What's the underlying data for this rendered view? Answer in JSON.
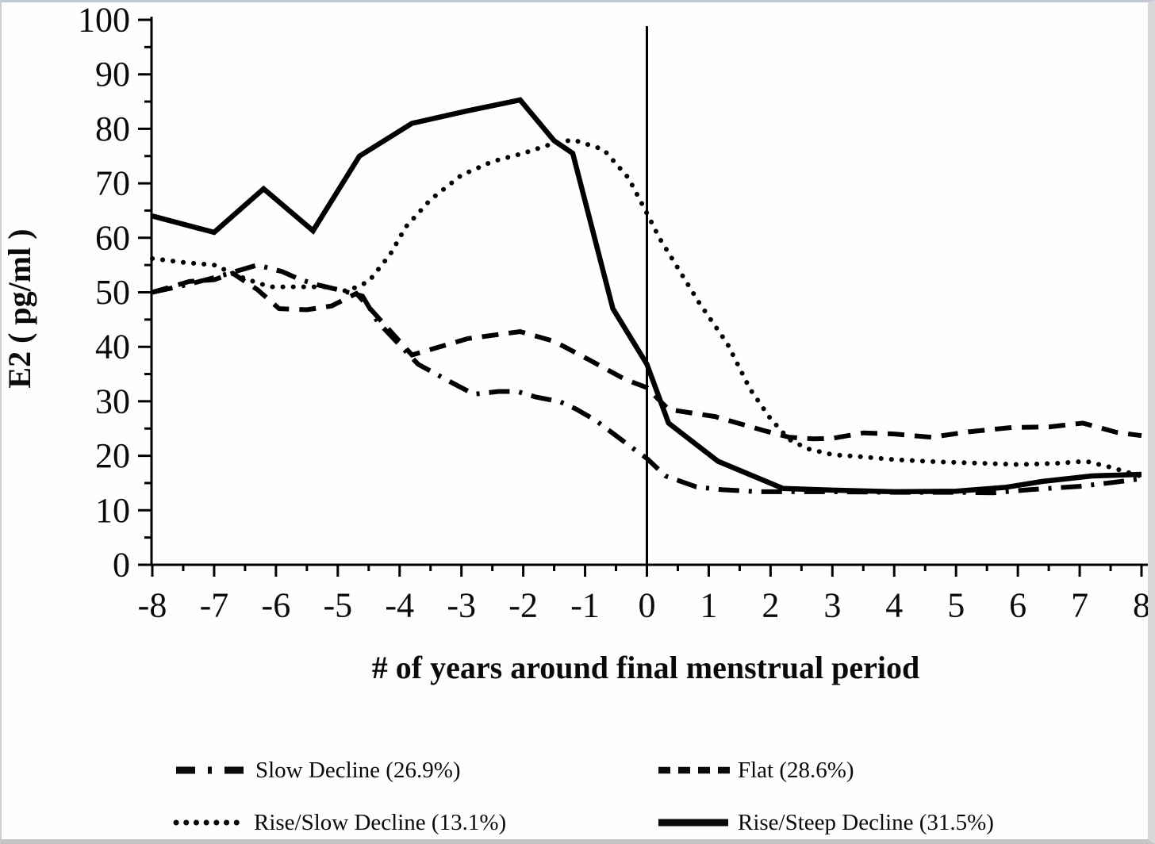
{
  "colors": {
    "line": "#000000",
    "frame": "#c4c9d2",
    "background": "#fefefe"
  },
  "chart_data": {
    "type": "line",
    "title": "",
    "xlabel": "# of years around final menstrual period",
    "ylabel": "E2 ( pg/ml )",
    "xlim": [
      -8,
      8
    ],
    "ylim": [
      0,
      100
    ],
    "x_ticks": [
      -8,
      -7,
      -6,
      -5,
      -4,
      -3,
      -2,
      -1,
      0,
      1,
      2,
      3,
      4,
      5,
      6,
      7,
      8
    ],
    "y_ticks": [
      0,
      10,
      20,
      30,
      40,
      50,
      60,
      70,
      80,
      90,
      100
    ],
    "x_minor_tick_step": 0.5,
    "y_minor_tick_step": 5,
    "grid": false,
    "reference_line_x": 0,
    "legend_position": "bottom",
    "series": [
      {
        "name": "Slow Decline (26.9%)",
        "line_style": "dash-dot",
        "color": "#000000",
        "points": [
          [
            -8,
            50
          ],
          [
            -7.4,
            51.5
          ],
          [
            -6.9,
            53
          ],
          [
            -6.3,
            55
          ],
          [
            -5.9,
            53.8
          ],
          [
            -5.6,
            52.3
          ],
          [
            -5.3,
            51.3
          ],
          [
            -5,
            50.5
          ],
          [
            -4.6,
            49.3
          ],
          [
            -4.35,
            44.5
          ],
          [
            -3.7,
            36.8
          ],
          [
            -3.2,
            33.7
          ],
          [
            -2.8,
            31.3
          ],
          [
            -2.4,
            31.8
          ],
          [
            -2.1,
            31.8
          ],
          [
            -1.8,
            30.8
          ],
          [
            -1.4,
            29.9
          ],
          [
            -1.15,
            28.6
          ],
          [
            -0.83,
            26.5
          ],
          [
            -0.3,
            22
          ],
          [
            0,
            19.5
          ],
          [
            0.3,
            16.3
          ],
          [
            0.8,
            14.3
          ],
          [
            1.2,
            13.8
          ],
          [
            1.8,
            13.4
          ],
          [
            3,
            13.4
          ],
          [
            4,
            13.3
          ],
          [
            5,
            13.3
          ],
          [
            5.6,
            13.2
          ],
          [
            6.2,
            13.8
          ],
          [
            7,
            14.4
          ],
          [
            7.6,
            15.2
          ],
          [
            8,
            15.8
          ]
        ]
      },
      {
        "name": "Flat (28.6%)",
        "line_style": "dashed",
        "color": "#000000",
        "points": [
          [
            -8,
            50
          ],
          [
            -7.4,
            52
          ],
          [
            -7,
            52.3
          ],
          [
            -6.7,
            53.5
          ],
          [
            -6.3,
            50.5
          ],
          [
            -5.95,
            47
          ],
          [
            -5.5,
            46.8
          ],
          [
            -5.1,
            47.5
          ],
          [
            -4.7,
            49.8
          ],
          [
            -3.8,
            38.5
          ],
          [
            -2.9,
            41.5
          ],
          [
            -2.05,
            42.8
          ],
          [
            -1.5,
            41
          ],
          [
            -0.95,
            37.7
          ],
          [
            -0.35,
            34
          ],
          [
            0,
            32.5
          ],
          [
            0.35,
            28.5
          ],
          [
            1.1,
            27.2
          ],
          [
            1.9,
            24.6
          ],
          [
            2.3,
            23.4
          ],
          [
            2.7,
            23.1
          ],
          [
            3,
            23.2
          ],
          [
            3.5,
            24.2
          ],
          [
            4,
            24
          ],
          [
            4.6,
            23.4
          ],
          [
            5.2,
            24.4
          ],
          [
            5.9,
            25.2
          ],
          [
            6.5,
            25.3
          ],
          [
            7.05,
            26
          ],
          [
            7.6,
            24.3
          ],
          [
            8,
            23.7
          ]
        ]
      },
      {
        "name": "Rise/Slow Decline (13.1%)",
        "line_style": "dotted",
        "color": "#000000",
        "points": [
          [
            -8,
            56.2
          ],
          [
            -7.5,
            55.5
          ],
          [
            -7,
            55
          ],
          [
            -6.5,
            52.5
          ],
          [
            -6.1,
            51
          ],
          [
            -5.6,
            51
          ],
          [
            -5.2,
            51
          ],
          [
            -4.85,
            50.2
          ],
          [
            -4.5,
            52
          ],
          [
            -4.15,
            57
          ],
          [
            -3.9,
            62
          ],
          [
            -3.5,
            67
          ],
          [
            -3,
            71.5
          ],
          [
            -2.5,
            74
          ],
          [
            -2,
            75.5
          ],
          [
            -1.6,
            77
          ],
          [
            -1.2,
            78
          ],
          [
            -0.7,
            76.2
          ],
          [
            -0.3,
            71
          ],
          [
            0,
            64.5
          ],
          [
            0.2,
            60
          ],
          [
            0.85,
            48
          ],
          [
            1.3,
            40.6
          ],
          [
            1.67,
            32.2
          ],
          [
            2,
            26.8
          ],
          [
            2.3,
            23
          ],
          [
            2.6,
            21.3
          ],
          [
            3,
            20.2
          ],
          [
            3.5,
            19.8
          ],
          [
            4,
            19.3
          ],
          [
            4.7,
            18.9
          ],
          [
            5.5,
            18.6
          ],
          [
            6,
            18.4
          ],
          [
            6.6,
            18.6
          ],
          [
            7.1,
            19
          ],
          [
            7.5,
            17.9
          ],
          [
            8,
            16.2
          ]
        ]
      },
      {
        "name": "Rise/Steep Decline (31.5%)",
        "line_style": "solid",
        "color": "#000000",
        "points": [
          [
            -8,
            64
          ],
          [
            -7,
            61
          ],
          [
            -6.2,
            69
          ],
          [
            -5.4,
            61.3
          ],
          [
            -4.65,
            75
          ],
          [
            -3.8,
            81
          ],
          [
            -2.9,
            83.3
          ],
          [
            -2.05,
            85.3
          ],
          [
            -1.5,
            77.8
          ],
          [
            -1.2,
            75.5
          ],
          [
            -0.55,
            47
          ],
          [
            0,
            36.8
          ],
          [
            0.35,
            26
          ],
          [
            1.15,
            19
          ],
          [
            2.2,
            14
          ],
          [
            3,
            13.7
          ],
          [
            4,
            13.4
          ],
          [
            5,
            13.5
          ],
          [
            5.8,
            14.2
          ],
          [
            6.4,
            15.3
          ],
          [
            7.2,
            16.3
          ],
          [
            8,
            16.6
          ]
        ]
      }
    ]
  },
  "legend": {
    "items": [
      {
        "label": "Slow Decline (26.9%)",
        "style": "dash-dot"
      },
      {
        "label": "Flat (28.6%)",
        "style": "dashed"
      },
      {
        "label": "Rise/Slow Decline (13.1%)",
        "style": "dotted"
      },
      {
        "label": "Rise/Steep Decline (31.5%)",
        "style": "solid"
      }
    ]
  }
}
